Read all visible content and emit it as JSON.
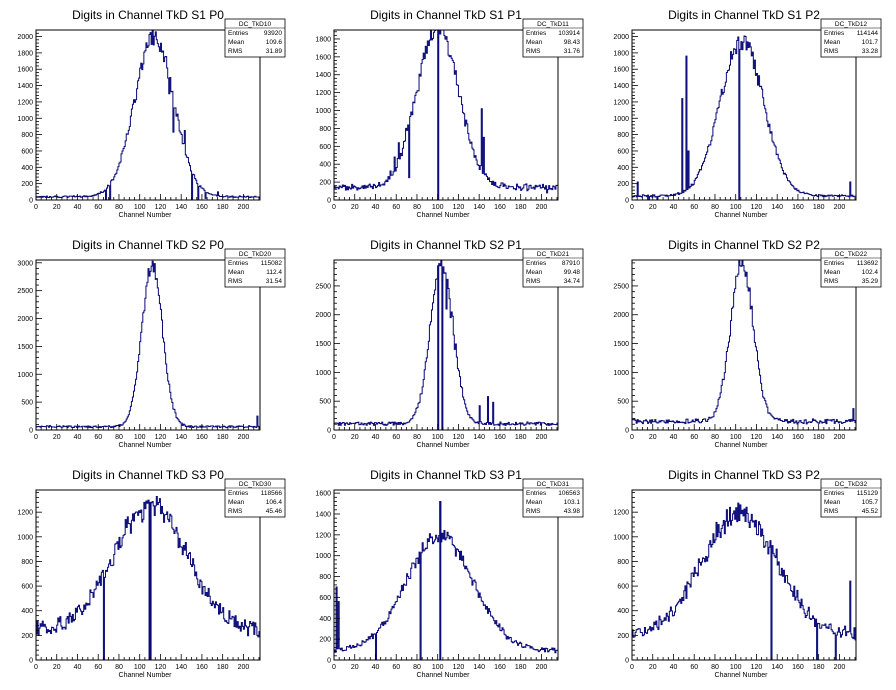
{
  "chart_data": [
    {
      "type": "histogram",
      "title": "Digits in Channel TkD S1 P0",
      "xlabel": "Channel Number",
      "xlim": [
        0,
        216
      ],
      "ylim": [
        0,
        2080
      ],
      "xticks": [
        0,
        20,
        40,
        60,
        80,
        100,
        120,
        140,
        160,
        180,
        200
      ],
      "yticks": [
        0,
        200,
        400,
        600,
        800,
        1000,
        1200,
        1400,
        1600,
        1800,
        2000
      ],
      "stats": {
        "name": "DC_TkD10",
        "entries": "93920",
        "mean": "109.6",
        "rms": "31.89"
      },
      "peak": {
        "center": 114,
        "width": 19,
        "height": 1940
      },
      "baseline": 40,
      "spikes": [
        {
          "x": 67,
          "y": 0
        },
        {
          "x": 71,
          "y": 0
        },
        {
          "x": 128,
          "y": 1300
        },
        {
          "x": 132,
          "y": 830
        },
        {
          "x": 136,
          "y": 1050
        },
        {
          "x": 143,
          "y": 850
        },
        {
          "x": 150,
          "y": 0
        },
        {
          "x": 156,
          "y": 0
        },
        {
          "x": 163,
          "y": 20
        },
        {
          "x": 175,
          "y": 100
        }
      ]
    },
    {
      "type": "histogram",
      "title": "Digits in Channel TkD S1 P1",
      "xlabel": "Channel Number",
      "xlim": [
        0,
        216
      ],
      "ylim": [
        0,
        1900
      ],
      "xticks": [
        0,
        20,
        40,
        60,
        80,
        100,
        120,
        140,
        160,
        180,
        200
      ],
      "yticks": [
        0,
        200,
        400,
        600,
        800,
        1000,
        1200,
        1400,
        1600,
        1800
      ],
      "stats": {
        "name": "DC_TkD11",
        "entries": "103914",
        "mean": "98.43",
        "rms": "31.76"
      },
      "peak": {
        "center": 100,
        "width": 20,
        "height": 1820
      },
      "baseline": 140,
      "spikes": [
        {
          "x": 58,
          "y": 480
        },
        {
          "x": 62,
          "y": 640
        },
        {
          "x": 69,
          "y": 800
        },
        {
          "x": 72,
          "y": 250
        },
        {
          "x": 100,
          "y": 1820
        },
        {
          "x": 142,
          "y": 1020
        },
        {
          "x": 144,
          "y": 700
        },
        {
          "x": 205,
          "y": 80
        }
      ]
    },
    {
      "type": "histogram",
      "title": "Digits in Channel TkD S1 P2",
      "xlabel": "Channel Number",
      "xlim": [
        0,
        216
      ],
      "ylim": [
        0,
        2080
      ],
      "xticks": [
        0,
        20,
        40,
        60,
        80,
        100,
        120,
        140,
        160,
        180,
        200
      ],
      "yticks": [
        0,
        200,
        400,
        600,
        800,
        1000,
        1200,
        1400,
        1600,
        1800,
        2000
      ],
      "stats": {
        "name": "DC_TkD12",
        "entries": "114144",
        "mean": "101.7",
        "rms": "33.28"
      },
      "peak": {
        "center": 106,
        "width": 21,
        "height": 1900
      },
      "baseline": 50,
      "spikes": [
        {
          "x": 5,
          "y": 220
        },
        {
          "x": 16,
          "y": 0
        },
        {
          "x": 24,
          "y": 0
        },
        {
          "x": 48,
          "y": 1240
        },
        {
          "x": 52,
          "y": 1760
        },
        {
          "x": 54,
          "y": 600
        },
        {
          "x": 103,
          "y": 0
        },
        {
          "x": 210,
          "y": 220
        }
      ]
    },
    {
      "type": "histogram",
      "title": "Digits in Channel TkD S2 P0",
      "xlabel": "Channel Number",
      "xlim": [
        0,
        216
      ],
      "ylim": [
        0,
        3050
      ],
      "xticks": [
        0,
        20,
        40,
        60,
        80,
        100,
        120,
        140,
        160,
        180,
        200
      ],
      "yticks": [
        0,
        500,
        1000,
        1500,
        2000,
        2500,
        3000
      ],
      "stats": {
        "name": "DC_TkD20",
        "entries": "115082",
        "mean": "112.4",
        "rms": "31.54"
      },
      "peak": {
        "center": 112,
        "width": 10,
        "height": 2880
      },
      "baseline": 60,
      "spikes": [
        {
          "x": 213,
          "y": 250
        }
      ]
    },
    {
      "type": "histogram",
      "title": "Digits in Channel TkD S2 P1",
      "xlabel": "Channel Number",
      "xlim": [
        0,
        216
      ],
      "ylim": [
        0,
        2950
      ],
      "xticks": [
        0,
        20,
        40,
        60,
        80,
        100,
        120,
        140,
        160,
        180,
        200
      ],
      "yticks": [
        0,
        500,
        1000,
        1500,
        2000,
        2500
      ],
      "stats": {
        "name": "DC_TkD21",
        "entries": "87910",
        "mean": "99.48",
        "rms": "34.74"
      },
      "peak": {
        "center": 104,
        "width": 11,
        "height": 2800
      },
      "baseline": 110,
      "spikes": [
        {
          "x": 96,
          "y": 2350
        },
        {
          "x": 100,
          "y": 2850
        },
        {
          "x": 104,
          "y": 2600
        },
        {
          "x": 108,
          "y": 2100
        },
        {
          "x": 112,
          "y": 1950
        },
        {
          "x": 116,
          "y": 1400
        },
        {
          "x": 140,
          "y": 420
        },
        {
          "x": 148,
          "y": 580
        },
        {
          "x": 153,
          "y": 480
        }
      ]
    },
    {
      "type": "histogram",
      "title": "Digits in Channel TkD S2 P2",
      "xlabel": "Channel Number",
      "xlim": [
        0,
        216
      ],
      "ylim": [
        0,
        2950
      ],
      "xticks": [
        0,
        20,
        40,
        60,
        80,
        100,
        120,
        140,
        160,
        180,
        200
      ],
      "yticks": [
        0,
        500,
        1000,
        1500,
        2000,
        2500
      ],
      "stats": {
        "name": "DC_TkD22",
        "entries": "113692",
        "mean": "102.4",
        "rms": "35.29"
      },
      "peak": {
        "center": 106,
        "width": 11,
        "height": 2760
      },
      "baseline": 150,
      "spikes": [
        {
          "x": 213,
          "y": 370
        }
      ]
    },
    {
      "type": "histogram",
      "title": "Digits in Channel TkD S3 P0",
      "xlabel": "Channel Number",
      "xlim": [
        0,
        216
      ],
      "ylim": [
        0,
        1380
      ],
      "xticks": [
        0,
        20,
        40,
        60,
        80,
        100,
        120,
        140,
        160,
        180,
        200
      ],
      "yticks": [
        0,
        200,
        400,
        600,
        800,
        1000,
        1200
      ],
      "stats": {
        "name": "DC_TkD30",
        "entries": "118566",
        "mean": "106.4",
        "rms": "45.46"
      },
      "peak": {
        "center": 110,
        "width": 35,
        "height": 1020
      },
      "baseline": 240,
      "spikes": [
        {
          "x": 65,
          "y": 0
        },
        {
          "x": 109,
          "y": 0
        },
        {
          "x": 110,
          "y": 1280
        },
        {
          "x": 215,
          "y": 230
        }
      ]
    },
    {
      "type": "histogram",
      "title": "Digits in Channel TkD S3 P1",
      "xlabel": "Channel Number",
      "xlim": [
        0,
        216
      ],
      "ylim": [
        0,
        1630
      ],
      "xticks": [
        0,
        20,
        40,
        60,
        80,
        100,
        120,
        140,
        160,
        180,
        200
      ],
      "yticks": [
        0,
        200,
        400,
        600,
        800,
        1000,
        1200,
        1400,
        1600
      ],
      "stats": {
        "name": "DC_TkD31",
        "entries": "106563",
        "mean": "103.1",
        "rms": "43.98"
      },
      "peak": {
        "center": 102,
        "width": 32,
        "height": 1110
      },
      "baseline": 90,
      "spikes": [
        {
          "x": 2,
          "y": 700
        },
        {
          "x": 4,
          "y": 560
        },
        {
          "x": 40,
          "y": 0
        },
        {
          "x": 83,
          "y": 0
        },
        {
          "x": 102,
          "y": 1520
        }
      ]
    },
    {
      "type": "histogram",
      "title": "Digits in Channel TkD S3 P2",
      "xlabel": "Channel Number",
      "xlim": [
        0,
        216
      ],
      "ylim": [
        0,
        1380
      ],
      "xticks": [
        0,
        20,
        40,
        60,
        80,
        100,
        120,
        140,
        160,
        180,
        200
      ],
      "yticks": [
        0,
        200,
        400,
        600,
        800,
        1000,
        1200
      ],
      "stats": {
        "name": "DC_TkD32",
        "entries": "115129",
        "mean": "105.7",
        "rms": "45.52"
      },
      "peak": {
        "center": 104,
        "width": 36,
        "height": 1000
      },
      "baseline": 200,
      "spikes": [
        {
          "x": 134,
          "y": 0
        },
        {
          "x": 178,
          "y": 0
        },
        {
          "x": 196,
          "y": 0
        },
        {
          "x": 210,
          "y": 640
        }
      ]
    }
  ]
}
